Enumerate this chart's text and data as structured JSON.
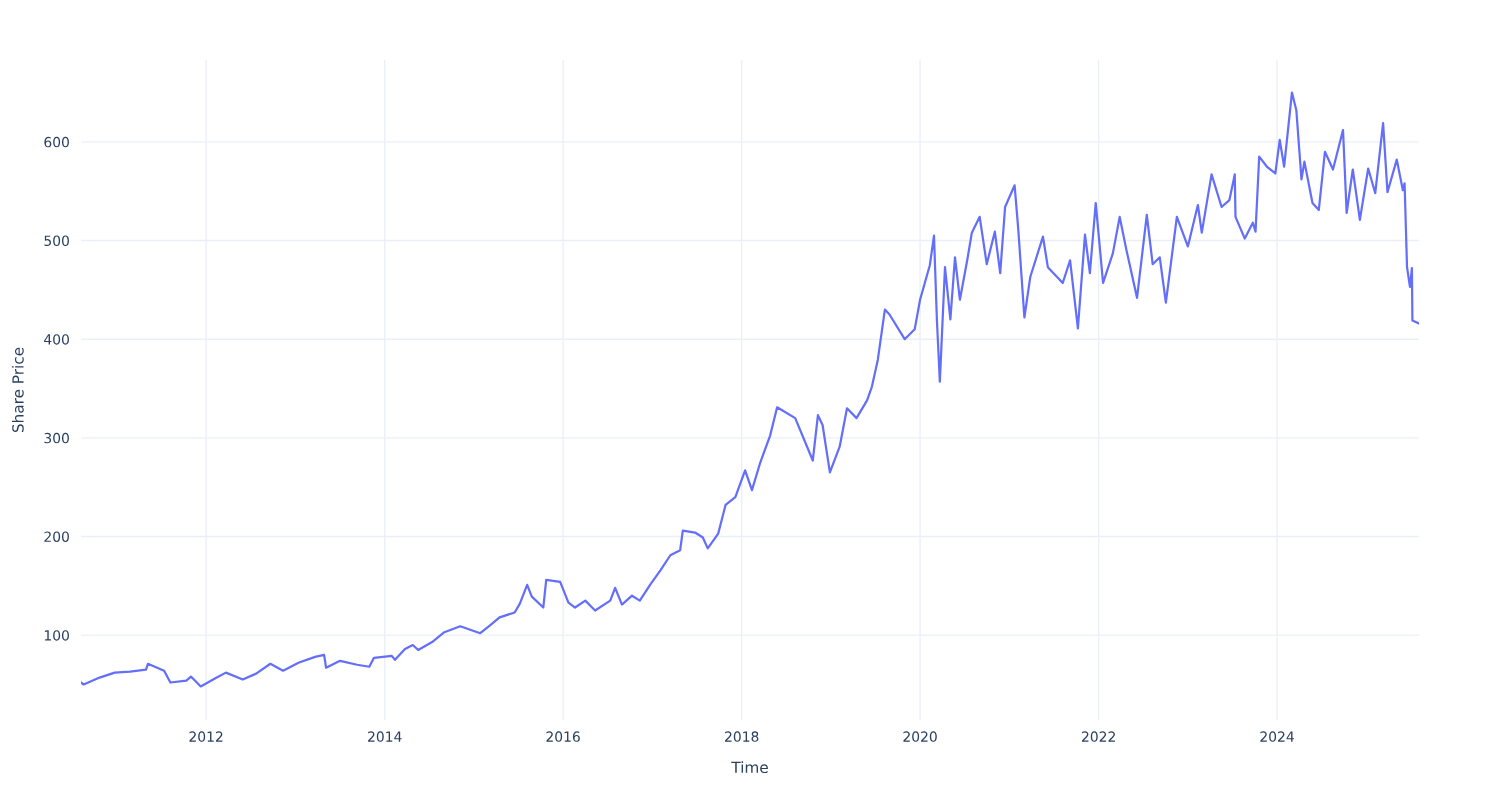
{
  "chart_data": {
    "type": "line",
    "xlabel": "Time",
    "ylabel": "Share Price",
    "x": [
      "2010-08-07",
      "2010-08-18",
      "2010-10-22",
      "2010-12-23",
      "2011-02-24",
      "2011-04-30",
      "2011-05-08",
      "2011-07-13",
      "2011-08-08",
      "2011-10-12",
      "2011-10-31",
      "2011-12-10",
      "2012-02-06",
      "2012-03-22",
      "2012-05-30",
      "2012-07-24",
      "2012-09-20",
      "2012-11-11",
      "2013-01-13",
      "2013-03-22",
      "2013-04-28",
      "2013-05-06",
      "2013-07-02",
      "2013-09-10",
      "2013-10-30",
      "2013-11-18",
      "2014-01-30",
      "2014-02-12",
      "2014-03-25",
      "2014-04-26",
      "2014-05-18",
      "2014-07-14",
      "2014-09-02",
      "2014-11-06",
      "2015-01-27",
      "2015-03-08",
      "2015-04-16",
      "2015-06-17",
      "2015-07-08",
      "2015-08-07",
      "2015-08-26",
      "2015-10-12",
      "2015-10-24",
      "2015-12-20",
      "2016-01-23",
      "2016-02-19",
      "2016-04-01",
      "2016-05-11",
      "2016-07-12",
      "2016-08-01",
      "2016-08-29",
      "2016-10-09",
      "2016-11-10",
      "2016-12-22",
      "2017-02-03",
      "2017-03-15",
      "2017-04-24",
      "2017-05-05",
      "2017-06-24",
      "2017-07-26",
      "2017-08-15",
      "2017-09-27",
      "2017-10-27",
      "2017-12-06",
      "2018-01-15",
      "2018-02-12",
      "2018-03-18",
      "2018-04-27",
      "2018-05-26",
      "2018-08-08",
      "2018-10-19",
      "2018-11-09",
      "2018-11-28",
      "2018-12-28",
      "2019-02-06",
      "2019-03-08",
      "2019-04-16",
      "2019-05-29",
      "2019-06-18",
      "2019-07-12",
      "2019-08-10",
      "2019-08-29",
      "2019-10-30",
      "2019-12-10",
      "2020-01-01",
      "2020-02-10",
      "2020-02-27",
      "2020-03-10",
      "2020-03-22",
      "2020-04-12",
      "2020-05-04",
      "2020-05-23",
      "2020-06-12",
      "2020-07-12",
      "2020-07-31",
      "2020-09-01",
      "2020-09-30",
      "2020-11-02",
      "2020-11-24",
      "2020-12-14",
      "2021-01-22",
      "2021-02-06",
      "2021-03-03",
      "2021-03-27",
      "2021-05-18",
      "2021-06-07",
      "2021-08-07",
      "2021-09-06",
      "2021-10-08",
      "2021-11-06",
      "2021-11-26",
      "2021-12-20",
      "2022-01-19",
      "2022-02-28",
      "2022-03-28",
      "2022-04-25",
      "2022-06-07",
      "2022-07-17",
      "2022-08-10",
      "2022-09-08",
      "2022-10-03",
      "2022-11-17",
      "2023-01-01",
      "2023-02-11",
      "2023-02-27",
      "2023-04-08",
      "2023-05-19",
      "2023-06-20",
      "2023-07-12",
      "2023-07-15",
      "2023-08-22",
      "2023-09-24",
      "2023-10-05",
      "2023-10-20",
      "2023-11-20",
      "2023-12-25",
      "2024-01-12",
      "2024-01-30",
      "2024-03-02",
      "2024-03-20",
      "2024-04-10",
      "2024-04-22",
      "2024-05-25",
      "2024-06-20",
      "2024-07-15",
      "2024-08-17",
      "2024-09-27",
      "2024-10-12",
      "2024-11-06",
      "2024-12-05",
      "2025-01-08",
      "2025-02-06",
      "2025-03-10",
      "2025-03-28",
      "2025-05-05",
      "2025-05-30",
      "2025-06-06",
      "2025-06-16",
      "2025-06-28",
      "2025-07-06",
      "2025-07-08",
      "2025-08-04"
    ],
    "series": [
      {
        "color": "#636efa",
        "values": [
          52,
          50,
          57,
          62,
          63,
          65,
          71,
          64,
          52,
          54,
          58,
          48,
          56,
          62,
          55,
          61,
          71,
          64,
          72,
          78,
          80,
          67,
          74,
          70,
          68,
          77,
          79,
          75,
          86,
          90,
          85,
          93,
          103,
          109,
          102,
          110,
          118,
          123,
          132,
          151,
          139,
          128,
          156,
          154,
          133,
          128,
          135,
          125,
          135,
          148,
          131,
          140,
          135,
          151,
          166,
          181,
          186,
          206,
          204,
          199,
          188,
          203,
          232,
          240,
          267,
          247,
          275,
          302,
          331,
          320,
          277,
          323,
          313,
          265,
          291,
          330,
          320,
          338,
          352,
          379,
          430,
          425,
          400,
          410,
          440,
          475,
          505,
          419,
          357,
          473,
          420,
          483,
          440,
          480,
          508,
          524,
          476,
          509,
          467,
          534,
          556,
          511,
          422,
          463,
          504,
          473,
          457,
          480,
          411,
          506,
          467,
          538,
          457,
          487,
          524,
          490,
          442,
          526,
          476,
          483,
          437,
          524,
          494,
          536,
          508,
          567,
          534,
          541,
          567,
          524,
          502,
          518,
          509,
          585,
          575,
          568,
          602,
          575,
          650,
          632,
          562,
          580,
          538,
          531,
          590,
          572,
          612,
          528,
          572,
          521,
          573,
          548,
          619,
          549,
          582,
          551,
          558,
          473,
          453,
          472,
          419,
          416
        ]
      }
    ],
    "xlim": [
      "2010-08-07",
      "2025-08-04"
    ],
    "ylim": [
      14,
      683
    ],
    "xticks": [
      "2012",
      "2014",
      "2016",
      "2018",
      "2020",
      "2022",
      "2024"
    ],
    "yticks": [
      100,
      200,
      300,
      400,
      500,
      600
    ],
    "grid": true,
    "marker": "none",
    "line_style": "solid"
  }
}
